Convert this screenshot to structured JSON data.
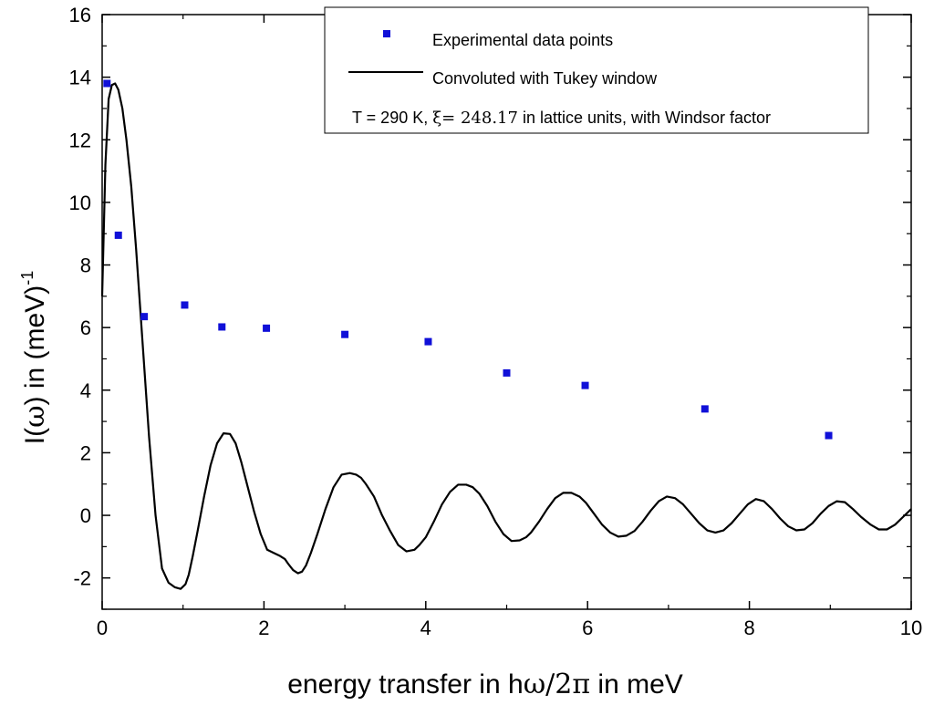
{
  "chart_data": {
    "type": "scatter+line",
    "title": "",
    "xlabel_parts": {
      "prefix": "energy transfer in h",
      "omega": "ω",
      "slash": "/2",
      "pi": "π",
      "suffix": " in meV"
    },
    "ylabel_parts": {
      "prefix": "I(",
      "omega": "ω",
      "suffix": ") in (meV)",
      "sup": "-1"
    },
    "xlim": [
      0,
      10
    ],
    "ylim": [
      -3,
      16
    ],
    "xticks": [
      "0",
      "2",
      "4",
      "6",
      "8",
      "10"
    ],
    "yticks": [
      "-2",
      "0",
      "2",
      "4",
      "6",
      "8",
      "10",
      "12",
      "14",
      "16"
    ],
    "legend": {
      "position": "top-right",
      "entries": {
        "points": "Experimental data points",
        "line": "Convoluted with Tukey window"
      },
      "note": {
        "prefix": "T = 290 K, ",
        "xi": "ξ",
        "equals": "= ",
        "value": "248.17",
        "suffix": " in lattice units, with Windsor factor"
      }
    },
    "series": [
      {
        "name": "Experimental data points",
        "kind": "points",
        "color": "#1010d8",
        "x": [
          0.06,
          0.2,
          0.52,
          1.02,
          1.48,
          2.03,
          3.0,
          4.03,
          5.0,
          5.97,
          7.45,
          8.98
        ],
        "y": [
          13.8,
          8.95,
          6.35,
          6.72,
          6.02,
          5.98,
          5.78,
          5.55,
          4.55,
          4.15,
          3.4,
          2.55
        ]
      },
      {
        "name": "Convoluted with Tukey window",
        "kind": "line",
        "color": "#000000",
        "x": [
          0.0,
          0.04,
          0.08,
          0.12,
          0.16,
          0.2,
          0.25,
          0.3,
          0.36,
          0.42,
          0.5,
          0.58,
          0.66,
          0.74,
          0.82,
          0.9,
          0.97,
          1.03,
          1.07,
          1.12,
          1.18,
          1.26,
          1.34,
          1.42,
          1.5,
          1.58,
          1.65,
          1.72,
          1.8,
          1.88,
          1.96,
          2.04,
          2.12,
          2.2,
          2.26,
          2.3,
          2.36,
          2.42,
          2.47,
          2.52,
          2.58,
          2.66,
          2.76,
          2.86,
          2.96,
          3.06,
          3.14,
          3.2,
          3.26,
          3.36,
          3.46,
          3.56,
          3.66,
          3.76,
          3.86,
          3.92,
          4.0,
          4.1,
          4.2,
          4.3,
          4.4,
          4.5,
          4.58,
          4.66,
          4.76,
          4.86,
          4.96,
          5.06,
          5.16,
          5.24,
          5.3,
          5.4,
          5.5,
          5.6,
          5.7,
          5.8,
          5.9,
          5.98,
          6.08,
          6.18,
          6.28,
          6.38,
          6.48,
          6.58,
          6.68,
          6.78,
          6.88,
          6.98,
          7.08,
          7.18,
          7.28,
          7.38,
          7.48,
          7.58,
          7.68,
          7.78,
          7.88,
          7.98,
          8.08,
          8.18,
          8.28,
          8.38,
          8.48,
          8.58,
          8.68,
          8.78,
          8.88,
          8.98,
          9.08,
          9.18,
          9.28,
          9.38,
          9.5,
          9.6,
          9.7,
          9.8,
          9.9,
          10.0
        ],
        "y": [
          7.0,
          11.2,
          13.3,
          13.75,
          13.8,
          13.6,
          13.0,
          12.0,
          10.5,
          8.5,
          5.5,
          2.5,
          0.0,
          -1.7,
          -2.15,
          -2.3,
          -2.35,
          -2.2,
          -1.9,
          -1.3,
          -0.5,
          0.6,
          1.6,
          2.3,
          2.62,
          2.6,
          2.3,
          1.7,
          0.9,
          0.1,
          -0.6,
          -1.1,
          -1.2,
          -1.3,
          -1.4,
          -1.55,
          -1.75,
          -1.85,
          -1.8,
          -1.6,
          -1.2,
          -0.6,
          0.2,
          0.9,
          1.3,
          1.35,
          1.3,
          1.2,
          1.0,
          0.6,
          0.0,
          -0.5,
          -0.95,
          -1.15,
          -1.1,
          -0.95,
          -0.7,
          -0.2,
          0.35,
          0.75,
          0.98,
          0.98,
          0.9,
          0.7,
          0.3,
          -0.2,
          -0.6,
          -0.82,
          -0.8,
          -0.7,
          -0.55,
          -0.2,
          0.2,
          0.55,
          0.72,
          0.72,
          0.6,
          0.4,
          0.05,
          -0.3,
          -0.55,
          -0.68,
          -0.65,
          -0.5,
          -0.2,
          0.15,
          0.45,
          0.6,
          0.55,
          0.35,
          0.05,
          -0.25,
          -0.48,
          -0.55,
          -0.48,
          -0.25,
          0.05,
          0.35,
          0.52,
          0.45,
          0.2,
          -0.1,
          -0.35,
          -0.48,
          -0.45,
          -0.25,
          0.05,
          0.3,
          0.45,
          0.42,
          0.2,
          -0.05,
          -0.3,
          -0.45,
          -0.45,
          -0.3,
          -0.05,
          0.2
        ],
        "color_note": "black solid line"
      }
    ]
  }
}
